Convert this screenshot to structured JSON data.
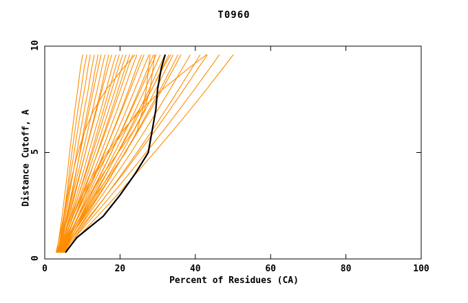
{
  "chart_data": {
    "type": "line",
    "title": "T0960",
    "xlabel": "Percent of Residues (CA)",
    "ylabel": "Distance Cutoff, A",
    "xlim": [
      0,
      100
    ],
    "ylim": [
      0,
      10
    ],
    "xticks": [
      0,
      20,
      40,
      60,
      80,
      100
    ],
    "yticks": [
      0,
      5,
      10
    ],
    "grid": false,
    "legend": "none",
    "series_color": "#ff8c00",
    "highlight_color": "#000000",
    "y_samples": [
      0.3,
      1,
      2,
      3,
      4,
      5,
      6,
      7,
      8,
      9,
      9.6
    ],
    "orange_series": [
      [
        3.2,
        3.8,
        4.6,
        5.3,
        6.0,
        6.6,
        7.3,
        8.0,
        8.8,
        9.5,
        10.1
      ],
      [
        3.5,
        4.2,
        5.0,
        5.8,
        6.5,
        7.2,
        8.0,
        8.8,
        9.7,
        10.5,
        11.2
      ],
      [
        3.0,
        3.9,
        5.0,
        6.0,
        6.9,
        7.8,
        8.7,
        9.6,
        10.6,
        11.5,
        12.1
      ],
      [
        3.4,
        4.3,
        5.5,
        6.5,
        7.5,
        8.5,
        9.5,
        10.5,
        11.6,
        12.5,
        13.2
      ],
      [
        3.8,
        4.8,
        6.0,
        7.2,
        8.3,
        9.3,
        10.3,
        11.4,
        12.5,
        13.5,
        14.2
      ],
      [
        3.2,
        4.4,
        5.8,
        7.0,
        8.2,
        9.4,
        10.6,
        11.8,
        13.0,
        14.2,
        15.0
      ],
      [
        3.6,
        4.6,
        6.0,
        7.4,
        8.8,
        10.1,
        11.4,
        12.7,
        14.0,
        15.2,
        16.0
      ],
      [
        4.0,
        5.0,
        6.5,
        8.0,
        9.4,
        10.8,
        12.2,
        13.6,
        15.0,
        16.2,
        17.0
      ],
      [
        3.3,
        4.5,
        6.2,
        7.8,
        9.3,
        10.8,
        12.3,
        13.8,
        15.3,
        16.8,
        17.8
      ],
      [
        3.7,
        5.0,
        6.8,
        8.5,
        10.1,
        11.7,
        13.3,
        14.9,
        16.4,
        17.9,
        18.9
      ],
      [
        4.2,
        5.5,
        7.3,
        9.0,
        10.7,
        12.4,
        14.0,
        15.6,
        17.2,
        18.8,
        19.8
      ],
      [
        3.5,
        5.0,
        7.0,
        9.0,
        10.9,
        12.7,
        14.5,
        16.2,
        17.9,
        19.6,
        20.7
      ],
      [
        3.9,
        5.4,
        7.5,
        9.5,
        11.4,
        13.3,
        15.2,
        17.0,
        18.8,
        20.5,
        21.6
      ],
      [
        4.4,
        6.0,
        8.1,
        10.1,
        12.1,
        14.0,
        15.9,
        17.8,
        19.6,
        21.4,
        22.6
      ],
      [
        3.6,
        5.2,
        7.5,
        9.8,
        12.0,
        14.1,
        16.2,
        18.2,
        20.2,
        22.1,
        23.4
      ],
      [
        4.0,
        5.8,
        8.2,
        10.5,
        12.8,
        15.0,
        17.1,
        19.2,
        21.2,
        23.2,
        24.5
      ],
      [
        4.5,
        6.3,
        8.8,
        11.2,
        13.6,
        15.9,
        18.1,
        20.3,
        22.4,
        24.4,
        25.7
      ],
      [
        3.8,
        5.6,
        8.2,
        10.8,
        13.3,
        15.8,
        18.2,
        20.5,
        22.8,
        25.0,
        26.4
      ],
      [
        4.2,
        6.1,
        8.9,
        11.6,
        14.2,
        16.8,
        19.3,
        21.7,
        24.0,
        26.3,
        27.7
      ],
      [
        4.6,
        6.6,
        9.5,
        12.3,
        15.0,
        17.7,
        20.3,
        22.8,
        25.2,
        27.5,
        28.9
      ],
      [
        3.9,
        6.0,
        9.0,
        12.0,
        14.9,
        17.7,
        20.4,
        23.0,
        25.6,
        28.1,
        29.6
      ],
      [
        4.3,
        6.5,
        9.6,
        12.7,
        15.7,
        18.6,
        21.4,
        24.1,
        26.7,
        29.2,
        30.7
      ],
      [
        4.7,
        7.0,
        10.2,
        13.4,
        16.4,
        19.4,
        22.3,
        25.1,
        27.8,
        30.4,
        31.9
      ],
      [
        4.0,
        6.4,
        9.8,
        13.1,
        16.3,
        19.5,
        22.6,
        25.6,
        28.5,
        31.3,
        33.0
      ],
      [
        4.4,
        6.9,
        10.4,
        13.9,
        17.2,
        20.5,
        23.6,
        26.7,
        29.6,
        32.4,
        34.1
      ],
      [
        4.8,
        7.4,
        11.0,
        14.5,
        18.0,
        21.3,
        24.6,
        27.7,
        30.8,
        33.7,
        35.4
      ],
      [
        4.1,
        6.8,
        10.6,
        14.3,
        17.9,
        21.4,
        24.8,
        28.1,
        31.3,
        34.4,
        36.2
      ],
      [
        4.5,
        7.3,
        11.3,
        15.3,
        19.1,
        22.9,
        26.5,
        30.0,
        33.4,
        36.7,
        38.7
      ],
      [
        4.9,
        7.9,
        12.2,
        16.4,
        20.5,
        24.5,
        28.4,
        32.1,
        35.7,
        39.2,
        41.3
      ],
      [
        4.2,
        7.4,
        11.9,
        16.4,
        20.8,
        25.0,
        29.2,
        33.2,
        37.1,
        40.9,
        43.2
      ],
      [
        4.6,
        8.0,
        12.9,
        17.7,
        22.4,
        26.9,
        31.4,
        35.7,
        39.9,
        44.0,
        46.4
      ],
      [
        5.0,
        8.7,
        14.0,
        19.2,
        24.2,
        29.1,
        33.9,
        38.6,
        43.1,
        47.5,
        50.1
      ],
      [
        4.8,
        6.5,
        9.0,
        12.0,
        15.5,
        19.5,
        23.5,
        26.5,
        28.0,
        28.8,
        29.2
      ],
      [
        5.2,
        7.0,
        10.0,
        13.5,
        17.5,
        21.5,
        24.5,
        26.0,
        27.0,
        27.6,
        28.0
      ],
      [
        4.3,
        5.8,
        8.0,
        10.5,
        13.5,
        17.0,
        21.0,
        25.0,
        28.5,
        31.5,
        33.5
      ],
      [
        3.4,
        4.2,
        5.2,
        6.2,
        7.4,
        8.8,
        10.6,
        13.0,
        16.5,
        21.0,
        24.0
      ],
      [
        4.0,
        5.5,
        7.5,
        10.0,
        13.0,
        16.5,
        20.5,
        25.5,
        31.5,
        38.5,
        43.0
      ]
    ],
    "highlight_series": [
      5.5,
      8.5,
      15.5,
      20.0,
      24.0,
      27.5,
      28.5,
      29.5,
      30.0,
      31.0,
      32.0
    ]
  }
}
